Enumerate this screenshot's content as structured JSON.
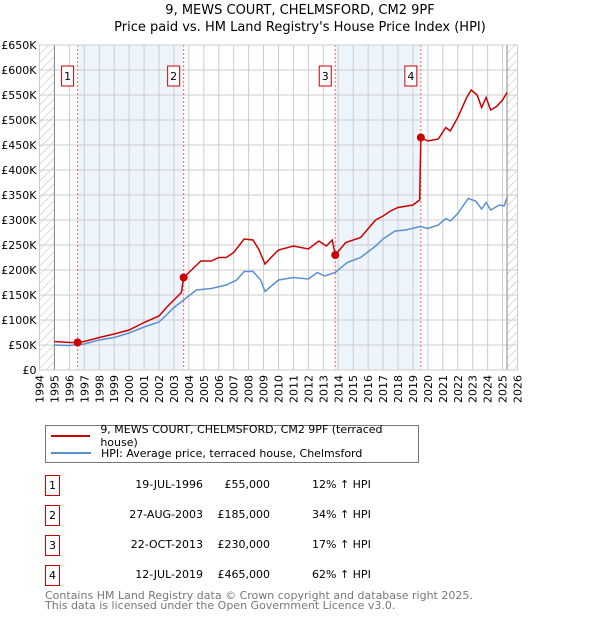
{
  "chart_data": {
    "type": "line",
    "title": "9, MEWS COURT, CHELMSFORD, CM2 9PF",
    "subtitle": "Price paid vs. HM Land Registry's House Price Index (HPI)",
    "xlim": [
      1994,
      2026
    ],
    "ylim": [
      0,
      650000
    ],
    "x_ticks": [
      "1994",
      "1995",
      "1996",
      "1997",
      "1998",
      "1999",
      "2000",
      "2001",
      "2002",
      "2003",
      "2004",
      "2005",
      "2006",
      "2007",
      "2008",
      "2009",
      "2010",
      "2011",
      "2012",
      "2013",
      "2014",
      "2015",
      "2016",
      "2017",
      "2018",
      "2019",
      "2020",
      "2021",
      "2022",
      "2023",
      "2024",
      "2025",
      "2026"
    ],
    "y_ticks": [
      "£0",
      "£50K",
      "£100K",
      "£150K",
      "£200K",
      "£250K",
      "£300K",
      "£350K",
      "£400K",
      "£450K",
      "£500K",
      "£550K",
      "£600K",
      "£650K"
    ],
    "grid": true,
    "hatched_before": 1995,
    "hatched_after": 2025.3,
    "series": [
      {
        "name": "9, MEWS COURT, CHELMSFORD, CM2 9PF (terraced house)",
        "color": "#cc0000",
        "points": [
          [
            1995,
            57
          ],
          [
            1996,
            55
          ],
          [
            1996.55,
            55
          ],
          [
            1997,
            57
          ],
          [
            1998,
            65
          ],
          [
            1999,
            72
          ],
          [
            2000,
            80
          ],
          [
            2001,
            95
          ],
          [
            2002,
            108
          ],
          [
            2002.5,
            125
          ],
          [
            2003.5,
            155
          ],
          [
            2003.65,
            185
          ],
          [
            2004,
            195
          ],
          [
            2004.8,
            218
          ],
          [
            2005.5,
            218
          ],
          [
            2006,
            225
          ],
          [
            2006.5,
            225
          ],
          [
            2007,
            235
          ],
          [
            2007.7,
            262
          ],
          [
            2008.3,
            260
          ],
          [
            2008.7,
            240
          ],
          [
            2009.1,
            212
          ],
          [
            2009.5,
            225
          ],
          [
            2010,
            240
          ],
          [
            2011,
            248
          ],
          [
            2012,
            242
          ],
          [
            2012.7,
            258
          ],
          [
            2013.2,
            248
          ],
          [
            2013.6,
            260
          ],
          [
            2013.8,
            230
          ],
          [
            2014.5,
            255
          ],
          [
            2015.5,
            265
          ],
          [
            2016.5,
            300
          ],
          [
            2017,
            308
          ],
          [
            2017.5,
            318
          ],
          [
            2018,
            325
          ],
          [
            2019,
            330
          ],
          [
            2019.45,
            340
          ],
          [
            2019.53,
            465
          ],
          [
            2020,
            458
          ],
          [
            2020.7,
            462
          ],
          [
            2021.2,
            485
          ],
          [
            2021.5,
            478
          ],
          [
            2022,
            505
          ],
          [
            2022.6,
            545
          ],
          [
            2022.9,
            560
          ],
          [
            2023.3,
            550
          ],
          [
            2023.6,
            525
          ],
          [
            2023.9,
            545
          ],
          [
            2024.2,
            520
          ],
          [
            2024.6,
            527
          ],
          [
            2025,
            540
          ],
          [
            2025.3,
            555
          ]
        ]
      },
      {
        "name": "HPI: Average price, terraced house, Chelmsford",
        "color": "#5b8fd0",
        "points": [
          [
            1995,
            50
          ],
          [
            1996,
            49
          ],
          [
            1997,
            52
          ],
          [
            1998,
            60
          ],
          [
            1999,
            65
          ],
          [
            2000,
            74
          ],
          [
            2001,
            86
          ],
          [
            2002,
            96
          ],
          [
            2002.5,
            110
          ],
          [
            2003,
            125
          ],
          [
            2003.65,
            140
          ],
          [
            2004.5,
            160
          ],
          [
            2005.5,
            163
          ],
          [
            2006.5,
            170
          ],
          [
            2007.2,
            180
          ],
          [
            2007.7,
            197
          ],
          [
            2008.3,
            197
          ],
          [
            2008.8,
            180
          ],
          [
            2009.1,
            157
          ],
          [
            2009.6,
            170
          ],
          [
            2010,
            180
          ],
          [
            2011,
            185
          ],
          [
            2012,
            182
          ],
          [
            2012.6,
            195
          ],
          [
            2013.1,
            188
          ],
          [
            2013.8,
            195
          ],
          [
            2014.6,
            215
          ],
          [
            2015.5,
            225
          ],
          [
            2016.5,
            248
          ],
          [
            2017,
            262
          ],
          [
            2017.8,
            278
          ],
          [
            2018.5,
            280
          ],
          [
            2019.5,
            287
          ],
          [
            2020,
            283
          ],
          [
            2020.7,
            290
          ],
          [
            2021.2,
            303
          ],
          [
            2021.5,
            298
          ],
          [
            2022,
            313
          ],
          [
            2022.7,
            343
          ],
          [
            2023.2,
            338
          ],
          [
            2023.6,
            322
          ],
          [
            2023.9,
            335
          ],
          [
            2024.2,
            320
          ],
          [
            2024.8,
            330
          ],
          [
            2025.1,
            328
          ],
          [
            2025.3,
            345
          ]
        ]
      }
    ],
    "y_units_points": "thousands GBP",
    "sales": [
      {
        "label": "1",
        "x": 1996.55,
        "value": 55,
        "date": "19-JUL-1996",
        "price": "£55,000",
        "hpi": "12% ↑ HPI"
      },
      {
        "label": "2",
        "x": 2003.65,
        "value": 185,
        "date": "27-AUG-2003",
        "price": "£185,000",
        "hpi": "34% ↑ HPI"
      },
      {
        "label": "3",
        "x": 2013.8,
        "value": 230,
        "date": "22-OCT-2013",
        "price": "£230,000",
        "hpi": "17% ↑ HPI"
      },
      {
        "label": "4",
        "x": 2019.53,
        "value": 465,
        "date": "12-JUL-2019",
        "price": "£465,000",
        "hpi": "62% ↑ HPI"
      }
    ],
    "shaded_spans": [
      [
        1996.55,
        2003.65
      ],
      [
        2013.8,
        2019.53
      ]
    ]
  },
  "footer": {
    "line1": "Contains HM Land Registry data © Crown copyright and database right 2025.",
    "line2": "This data is licensed under the Open Government Licence v3.0."
  }
}
